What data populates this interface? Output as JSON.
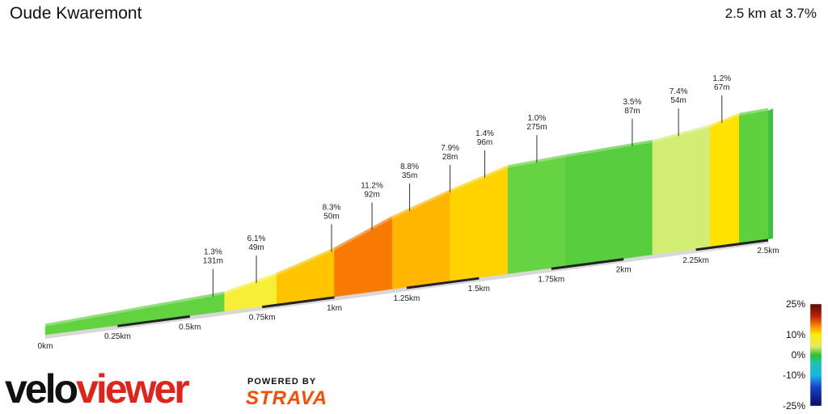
{
  "header": {
    "title": "Oude Kwaremont",
    "summary": "2.5 km at 3.7%"
  },
  "chart_data": {
    "type": "area",
    "title": "Oude Kwaremont",
    "xlabel": "",
    "ylabel": "",
    "x_unit": "km",
    "xlim": [
      0,
      2.5
    ],
    "x_ticks": [
      "0km",
      "0.25km",
      "0.5km",
      "0.75km",
      "1km",
      "1.25km",
      "1.5km",
      "1.75km",
      "2km",
      "2.25km",
      "2.5km"
    ],
    "grid": false,
    "profile": {
      "distance_km": [
        0,
        0.36,
        0.62,
        0.7,
        0.8,
        0.9,
        1.0,
        1.1,
        1.2,
        1.3,
        1.4,
        1.5,
        1.6,
        1.7,
        1.8,
        1.9,
        2.0,
        2.1,
        2.2,
        2.3,
        2.4,
        2.5
      ],
      "grade_pct": [
        1.3,
        1.3,
        1.3,
        6.1,
        6.1,
        8.3,
        8.3,
        11.2,
        11.2,
        8.8,
        8.8,
        7.9,
        7.9,
        1.4,
        1.4,
        1.0,
        1.0,
        1.0,
        3.5,
        3.5,
        7.4,
        1.2
      ]
    },
    "segments": [
      {
        "grade": "1.3%",
        "length": "131m",
        "at_km": 0.58
      },
      {
        "grade": "6.1%",
        "length": "49m",
        "at_km": 0.73
      },
      {
        "grade": "8.3%",
        "length": "50m",
        "at_km": 0.99
      },
      {
        "grade": "11.2%",
        "length": "92m",
        "at_km": 1.13
      },
      {
        "grade": "8.8%",
        "length": "35m",
        "at_km": 1.26
      },
      {
        "grade": "7.9%",
        "length": "28m",
        "at_km": 1.4
      },
      {
        "grade": "1.4%",
        "length": "96m",
        "at_km": 1.52
      },
      {
        "grade": "1.0%",
        "length": "275m",
        "at_km": 1.7
      },
      {
        "grade": "3.5%",
        "length": "87m",
        "at_km": 2.03
      },
      {
        "grade": "7.4%",
        "length": "54m",
        "at_km": 2.19
      },
      {
        "grade": "1.2%",
        "length": "67m",
        "at_km": 2.34
      }
    ],
    "color_scale": {
      "labels": [
        "25%",
        "10%",
        "0%",
        "-10%",
        "-25%"
      ],
      "values": [
        25,
        10,
        0,
        -10,
        -25
      ]
    }
  },
  "branding": {
    "logo_part1": "velo",
    "logo_part2": "viewer",
    "powered_by": "POWERED BY",
    "strava": "STRAVA"
  }
}
